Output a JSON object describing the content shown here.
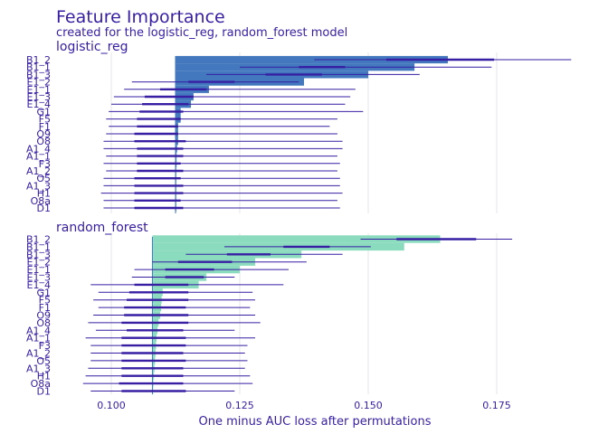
{
  "chart_data": {
    "type": "bar",
    "title": "Feature Importance",
    "subtitle": "created for the logistic_reg, random_forest model",
    "xlabel": "One minus AUC loss after permutations",
    "ylabel": "",
    "xlim": [
      0.088,
      0.19
    ],
    "xticks": [
      0.1,
      0.125,
      0.15,
      0.175
    ],
    "xtick_labels": [
      "0.100",
      "0.125",
      "0.150",
      "0.175"
    ],
    "grid": true,
    "panels": [
      {
        "name": "logistic_reg",
        "color": "#4378bf",
        "full_model": 0.1125,
        "features": [
          {
            "label": "B1_2",
            "mean": 0.1655,
            "q25": 0.1535,
            "q75": 0.1745,
            "min": 0.1395,
            "max": 0.1895
          },
          {
            "label": "B1_1",
            "mean": 0.159,
            "q25": 0.1365,
            "q75": 0.1455,
            "min": 0.125,
            "max": 0.174
          },
          {
            "label": "B1_3",
            "mean": 0.15,
            "q25": 0.13,
            "q75": 0.141,
            "min": 0.1185,
            "max": 0.16
          },
          {
            "label": "E1_2",
            "mean": 0.1375,
            "q25": 0.115,
            "q75": 0.124,
            "min": 0.104,
            "max": 0.1365
          },
          {
            "label": "E1_1",
            "mean": 0.119,
            "q25": 0.1095,
            "q75": 0.1185,
            "min": 0.1025,
            "max": 0.1475
          },
          {
            "label": "E1_3",
            "mean": 0.116,
            "q25": 0.1065,
            "q75": 0.116,
            "min": 0.1005,
            "max": 0.1465
          },
          {
            "label": "E1_4",
            "mean": 0.1155,
            "q25": 0.106,
            "q75": 0.115,
            "min": 0.1,
            "max": 0.1455
          },
          {
            "label": "G1",
            "mean": 0.1135,
            "q25": 0.1055,
            "q75": 0.114,
            "min": 0.0995,
            "max": 0.149
          },
          {
            "label": "F5",
            "mean": 0.1135,
            "q25": 0.105,
            "q75": 0.1135,
            "min": 0.099,
            "max": 0.144
          },
          {
            "label": "F1",
            "mean": 0.113,
            "q25": 0.105,
            "q75": 0.113,
            "min": 0.0995,
            "max": 0.1425
          },
          {
            "label": "O9",
            "mean": 0.113,
            "q25": 0.1045,
            "q75": 0.113,
            "min": 0.099,
            "max": 0.144
          },
          {
            "label": "O8",
            "mean": 0.113,
            "q25": 0.1045,
            "q75": 0.1145,
            "min": 0.0985,
            "max": 0.145
          },
          {
            "label": "A1_4",
            "mean": 0.1128,
            "q25": 0.105,
            "q75": 0.114,
            "min": 0.0985,
            "max": 0.145
          },
          {
            "label": "A1_1",
            "mean": 0.1127,
            "q25": 0.105,
            "q75": 0.114,
            "min": 0.099,
            "max": 0.144
          },
          {
            "label": "F3",
            "mean": 0.1127,
            "q25": 0.105,
            "q75": 0.1135,
            "min": 0.0985,
            "max": 0.1445
          },
          {
            "label": "A1_2",
            "mean": 0.1126,
            "q25": 0.105,
            "q75": 0.114,
            "min": 0.099,
            "max": 0.144
          },
          {
            "label": "O5",
            "mean": 0.1126,
            "q25": 0.1045,
            "q75": 0.1135,
            "min": 0.0985,
            "max": 0.1445
          },
          {
            "label": "A1_3",
            "mean": 0.1126,
            "q25": 0.1045,
            "q75": 0.114,
            "min": 0.0985,
            "max": 0.1445
          },
          {
            "label": "H1",
            "mean": 0.1126,
            "q25": 0.1045,
            "q75": 0.114,
            "min": 0.098,
            "max": 0.145
          },
          {
            "label": "O8a",
            "mean": 0.1125,
            "q25": 0.1045,
            "q75": 0.1135,
            "min": 0.0985,
            "max": 0.144
          },
          {
            "label": "D1",
            "mean": 0.1125,
            "q25": 0.1045,
            "q75": 0.114,
            "min": 0.0985,
            "max": 0.1445
          }
        ]
      },
      {
        "name": "random_forest",
        "color": "#8bdcbe",
        "full_model": 0.108,
        "features": [
          {
            "label": "B1_2",
            "mean": 0.164,
            "q25": 0.1555,
            "q75": 0.171,
            "min": 0.1485,
            "max": 0.178
          },
          {
            "label": "B1_1",
            "mean": 0.157,
            "q25": 0.1335,
            "q75": 0.1425,
            "min": 0.122,
            "max": 0.1505
          },
          {
            "label": "B1_3",
            "mean": 0.137,
            "q25": 0.1225,
            "q75": 0.131,
            "min": 0.1145,
            "max": 0.145
          },
          {
            "label": "E1_2",
            "mean": 0.128,
            "q25": 0.113,
            "q75": 0.1235,
            "min": 0.108,
            "max": 0.138
          },
          {
            "label": "E1_1",
            "mean": 0.125,
            "q25": 0.1105,
            "q75": 0.12,
            "min": 0.1045,
            "max": 0.1345
          },
          {
            "label": "E1_3",
            "mean": 0.1185,
            "q25": 0.1105,
            "q75": 0.118,
            "min": 0.104,
            "max": 0.124
          },
          {
            "label": "E1_4",
            "mean": 0.117,
            "q25": 0.1045,
            "q75": 0.115,
            "min": 0.096,
            "max": 0.1335
          },
          {
            "label": "G1",
            "mean": 0.11,
            "q25": 0.1035,
            "q75": 0.115,
            "min": 0.0975,
            "max": 0.1275
          },
          {
            "label": "F5",
            "mean": 0.1098,
            "q25": 0.103,
            "q75": 0.115,
            "min": 0.0965,
            "max": 0.128
          },
          {
            "label": "F1",
            "mean": 0.1097,
            "q25": 0.1025,
            "q75": 0.1145,
            "min": 0.0975,
            "max": 0.127
          },
          {
            "label": "O9",
            "mean": 0.1095,
            "q25": 0.1025,
            "q75": 0.115,
            "min": 0.0965,
            "max": 0.128
          },
          {
            "label": "O8",
            "mean": 0.1092,
            "q25": 0.102,
            "q75": 0.115,
            "min": 0.0955,
            "max": 0.129
          },
          {
            "label": "A1_4",
            "mean": 0.109,
            "q25": 0.103,
            "q75": 0.114,
            "min": 0.097,
            "max": 0.124
          },
          {
            "label": "A1_1",
            "mean": 0.1088,
            "q25": 0.102,
            "q75": 0.1145,
            "min": 0.095,
            "max": 0.128
          },
          {
            "label": "F3",
            "mean": 0.1087,
            "q25": 0.102,
            "q75": 0.1145,
            "min": 0.096,
            "max": 0.1265
          },
          {
            "label": "A1_2",
            "mean": 0.1086,
            "q25": 0.102,
            "q75": 0.114,
            "min": 0.096,
            "max": 0.126
          },
          {
            "label": "O5",
            "mean": 0.1085,
            "q25": 0.102,
            "q75": 0.1145,
            "min": 0.096,
            "max": 0.1265
          },
          {
            "label": "A1_3",
            "mean": 0.1084,
            "q25": 0.102,
            "q75": 0.114,
            "min": 0.0955,
            "max": 0.126
          },
          {
            "label": "H1",
            "mean": 0.1083,
            "q25": 0.102,
            "q75": 0.114,
            "min": 0.095,
            "max": 0.127
          },
          {
            "label": "O8a",
            "mean": 0.1082,
            "q25": 0.1015,
            "q75": 0.114,
            "min": 0.0945,
            "max": 0.1275
          },
          {
            "label": "D1",
            "mean": 0.108,
            "q25": 0.102,
            "q75": 0.1145,
            "min": 0.096,
            "max": 0.124
          }
        ]
      }
    ]
  }
}
